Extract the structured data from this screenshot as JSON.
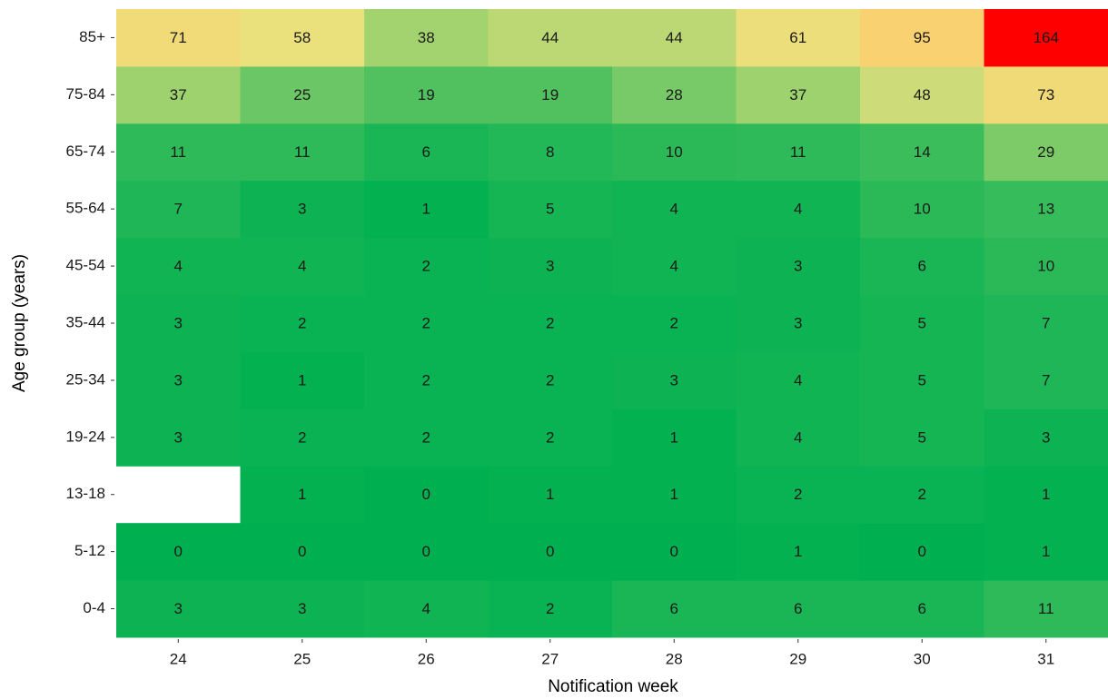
{
  "chart_data": {
    "type": "heatmap",
    "x_label": "Notification week",
    "y_label": "Age group (years)",
    "x": [
      24,
      25,
      26,
      27,
      28,
      29,
      30,
      31
    ],
    "xlim": [
      23.5,
      31.5
    ],
    "xticks": [
      24,
      25,
      26,
      27,
      28,
      29,
      30,
      31
    ],
    "y_categories": [
      "0-4",
      "5-12",
      "13-18",
      "19-24",
      "25-34",
      "35-44",
      "45-54",
      "55-64",
      "65-74",
      "75-84",
      "85+"
    ],
    "values": [
      [
        3,
        3,
        4,
        2,
        6,
        6,
        6,
        11
      ],
      [
        0,
        0,
        0,
        0,
        0,
        1,
        0,
        1
      ],
      [
        null,
        1,
        0,
        1,
        1,
        2,
        2,
        1
      ],
      [
        3,
        2,
        2,
        2,
        1,
        4,
        5,
        3
      ],
      [
        3,
        1,
        2,
        2,
        3,
        4,
        5,
        7
      ],
      [
        3,
        2,
        2,
        2,
        2,
        3,
        5,
        7
      ],
      [
        4,
        4,
        2,
        3,
        4,
        3,
        6,
        10
      ],
      [
        7,
        3,
        1,
        5,
        4,
        4,
        10,
        13
      ],
      [
        11,
        11,
        6,
        8,
        10,
        11,
        14,
        29
      ],
      [
        37,
        25,
        19,
        19,
        28,
        37,
        48,
        73
      ],
      [
        71,
        58,
        38,
        44,
        44,
        61,
        95,
        164
      ]
    ],
    "colors": [
      "#00b050",
      "#e9e27d",
      "#ffcb6b",
      "#ff0000"
    ]
  }
}
